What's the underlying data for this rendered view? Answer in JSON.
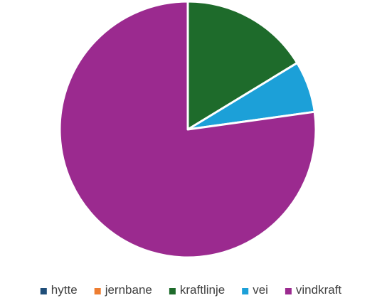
{
  "chart_data": {
    "type": "pie",
    "categories": [
      "hytte",
      "jernbane",
      "kraftlinje",
      "vei",
      "vindkraft"
    ],
    "values": [
      0.0,
      0.0,
      16.3,
      6.5,
      77.2
    ],
    "colors": [
      "#1f4e79",
      "#ed7d31",
      "#1e6b2b",
      "#1ca0d8",
      "#9b2a8f"
    ],
    "legend_position": "bottom",
    "start_angle_deg": 0,
    "slice_border_color": "#ffffff"
  }
}
